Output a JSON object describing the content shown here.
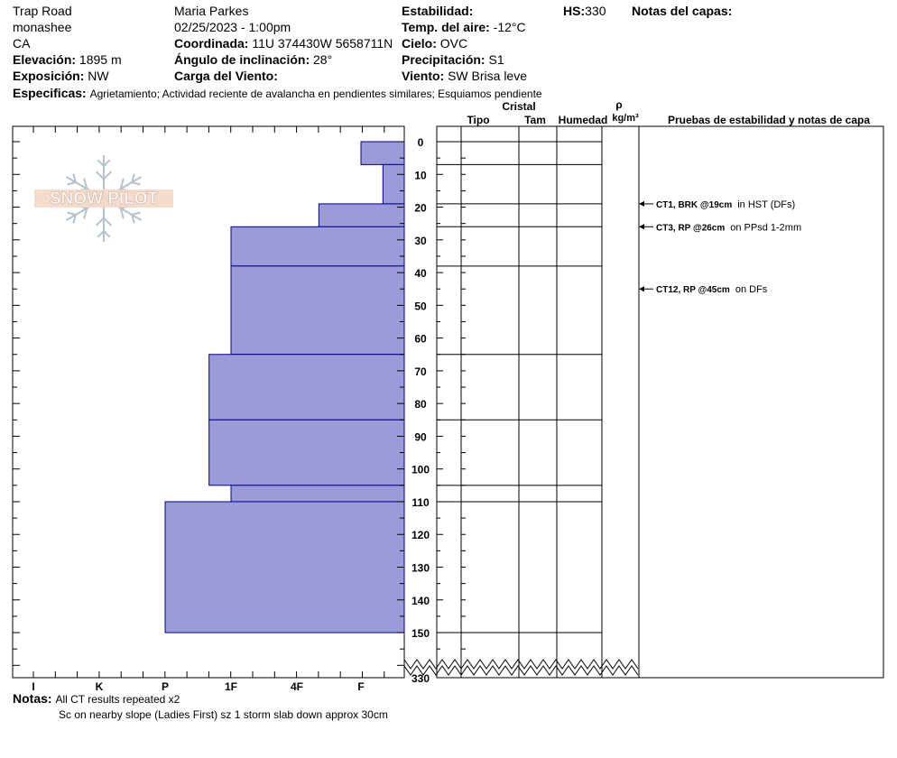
{
  "header": {
    "location": "Trap Road",
    "region": "monashee",
    "state": "CA",
    "elevation_label": "Elevación:",
    "elevation": "1895 m",
    "aspect_label": "Exposición:",
    "aspect": "NW",
    "observer": "Maria Parkes",
    "datetime": "02/25/2023 - 1:00pm",
    "coord_label": "Coordinada:",
    "coord": "11U 374430W 5658711N",
    "slope_label": "Ángulo de inclinación:",
    "slope": "28°",
    "wind_load_label": "Carga del Viento:",
    "stability_label": "Estabilidad:",
    "air_temp_label": "Temp. del aire:",
    "air_temp": "-12°C",
    "sky_label": "Cielo:",
    "sky": "OVC",
    "precip_label": "Precipitación:",
    "precip": "S1",
    "wind_label": "Viento:",
    "wind": "SW Brisa leve",
    "hs_label": "HS:",
    "hs": "330",
    "layer_notes_label": "Notas del capas:",
    "specifics_label": "Especificas:",
    "specifics": "Agrietamiento; Actividad reciente de avalancha en pendientes similares; Esquiamos pendiente"
  },
  "logo": {
    "text": "SNOW PILOT"
  },
  "columns": {
    "crystal": "Cristal",
    "type": "Tipo",
    "size": "Tam",
    "moisture": "Humedad",
    "rho": "ρ",
    "density_unit": "kg/m³",
    "tests": "Pruebas de estabilidad y notas de capa"
  },
  "notes": {
    "label": "Notas:",
    "line1": "All CT results repeated x2",
    "line2": "Sc on nearby slope (Ladies First) sz 1 storm slab down approx 30cm"
  },
  "colors": {
    "fill": "#9b9bd9",
    "edge": "#00008b"
  },
  "chart_data": {
    "type": "bar",
    "hardness_scale": [
      "I",
      "K",
      "P",
      "1F",
      "4F",
      "F"
    ],
    "depth_ticks": [
      0,
      10,
      20,
      30,
      40,
      50,
      60,
      70,
      80,
      90,
      100,
      110,
      120,
      130,
      140,
      150
    ],
    "depth_break_label": "330",
    "layers": [
      {
        "top": 0,
        "bottom": 7,
        "hardness": "F"
      },
      {
        "top": 7,
        "bottom": 19,
        "hardness": "F+"
      },
      {
        "top": 19,
        "bottom": 26,
        "hardness": "4F+"
      },
      {
        "top": 26,
        "bottom": 38,
        "hardness": "1F"
      },
      {
        "top": 38,
        "bottom": 65,
        "hardness": "1F"
      },
      {
        "top": 65,
        "bottom": 85,
        "hardness": "1F-"
      },
      {
        "top": 85,
        "bottom": 105,
        "hardness": "1F-"
      },
      {
        "top": 105,
        "bottom": 110,
        "hardness": "1F"
      },
      {
        "top": 110,
        "bottom": 150,
        "hardness": "P"
      }
    ],
    "tests": [
      {
        "depth": 19,
        "bold": "CT1, BRK @19cm",
        "text": "in HST (DFs)"
      },
      {
        "depth": 26,
        "bold": "CT3, RP @26cm",
        "text": "on PPsd 1-2mm"
      },
      {
        "depth": 45,
        "bold": "CT12, RP @45cm",
        "text": "on DFs"
      }
    ]
  }
}
